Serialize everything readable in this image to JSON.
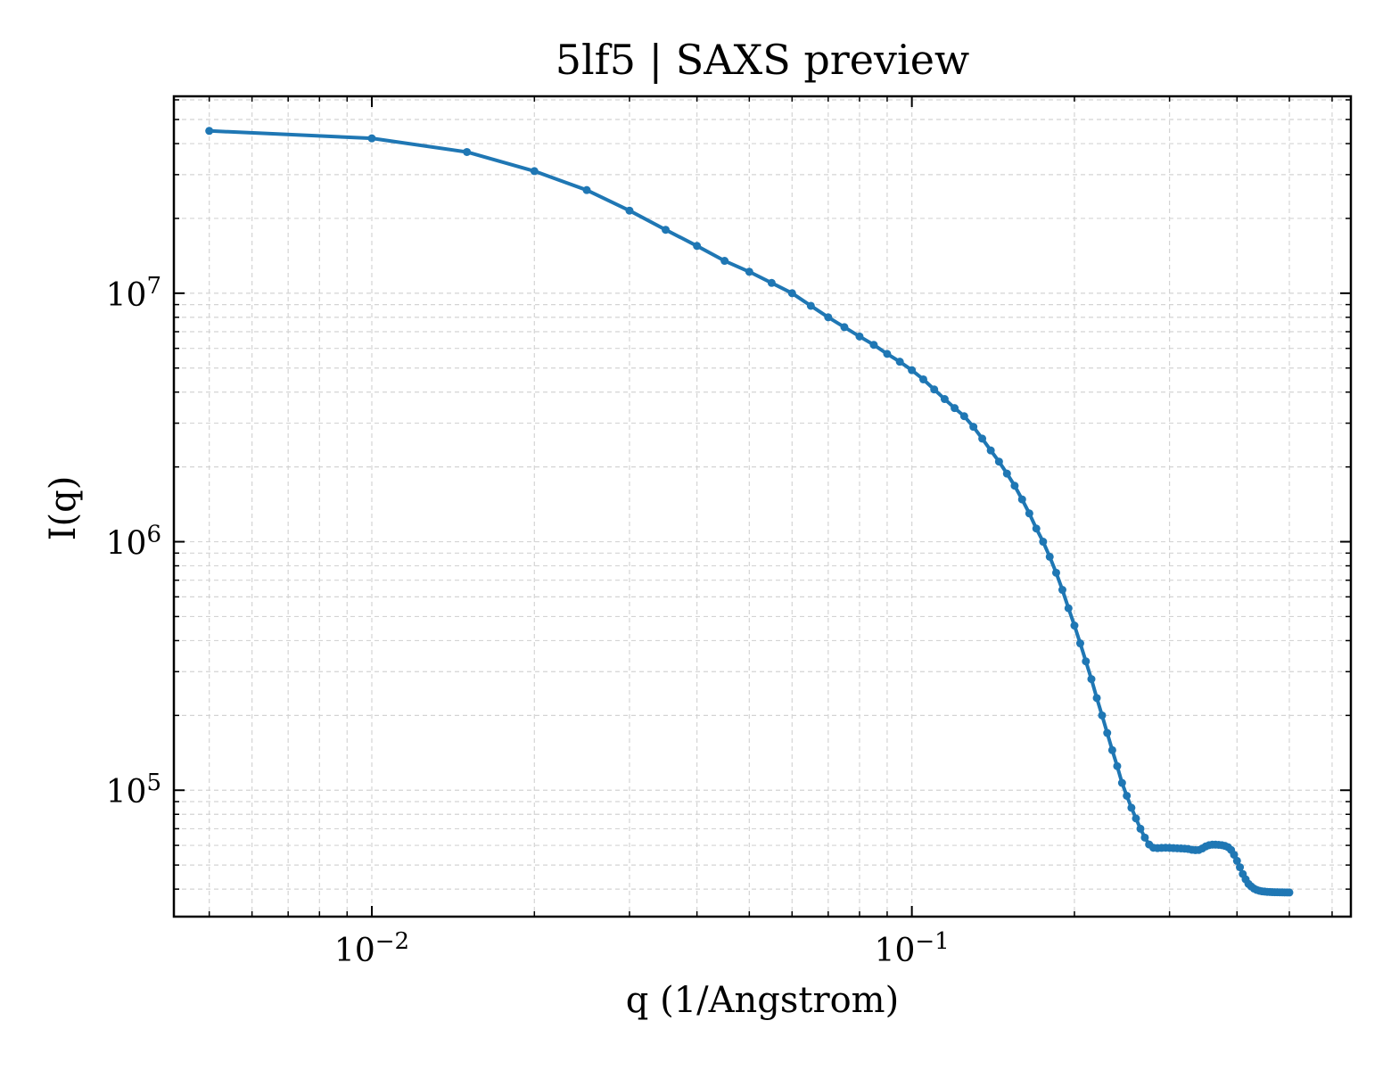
{
  "chart_data": {
    "type": "line",
    "title": "5lf5 | SAXS preview",
    "xlabel": "q (1/Angstrom)",
    "ylabel": "I(q)",
    "xscale": "log",
    "yscale": "log",
    "xlim": [
      0.0043,
      0.65
    ],
    "ylim": [
      31000,
      62000000
    ],
    "grid": true,
    "x_ticks": [
      {
        "value": 0.01,
        "base": "10",
        "exp": "−2"
      },
      {
        "value": 0.1,
        "base": "10",
        "exp": "−1"
      }
    ],
    "y_ticks": [
      {
        "value": 100000,
        "base": "10",
        "exp": "5"
      },
      {
        "value": 1000000,
        "base": "10",
        "exp": "6"
      },
      {
        "value": 10000000,
        "base": "10",
        "exp": "7"
      }
    ],
    "series": [
      {
        "color": "#1f77b4",
        "marker": "point",
        "x": [
          0.005,
          0.01,
          0.015,
          0.02,
          0.025,
          0.03,
          0.035,
          0.04,
          0.045,
          0.05,
          0.055,
          0.06,
          0.065,
          0.07,
          0.075,
          0.08,
          0.085,
          0.09,
          0.095,
          0.1,
          0.105,
          0.11,
          0.115,
          0.12,
          0.125,
          0.13,
          0.135,
          0.14,
          0.145,
          0.15,
          0.155,
          0.16,
          0.165,
          0.17,
          0.175,
          0.18,
          0.185,
          0.19,
          0.195,
          0.2,
          0.205,
          0.21,
          0.215,
          0.22,
          0.225,
          0.23,
          0.235,
          0.24,
          0.245,
          0.25,
          0.255,
          0.26,
          0.265,
          0.27,
          0.275,
          0.28,
          0.285,
          0.29,
          0.295,
          0.3,
          0.305,
          0.31,
          0.315,
          0.32,
          0.325,
          0.33,
          0.335,
          0.34,
          0.345,
          0.35,
          0.355,
          0.36,
          0.365,
          0.37,
          0.375,
          0.38,
          0.385,
          0.39,
          0.395,
          0.4,
          0.405,
          0.41,
          0.415,
          0.42,
          0.425,
          0.43,
          0.435,
          0.44,
          0.445,
          0.45,
          0.455,
          0.46,
          0.465,
          0.47,
          0.475,
          0.48,
          0.485,
          0.49,
          0.495,
          0.5
        ],
        "y": [
          45000000,
          42000000,
          37000000,
          31000000,
          26000000,
          21500000,
          18000000,
          15500000,
          13500000,
          12200000,
          11000000,
          10000000,
          8900000,
          8000000,
          7300000,
          6700000,
          6200000,
          5700000,
          5300000,
          4900000,
          4500000,
          4100000,
          3750000,
          3450000,
          3200000,
          2900000,
          2600000,
          2330000,
          2100000,
          1880000,
          1680000,
          1480000,
          1300000,
          1130000,
          1000000,
          870000,
          750000,
          640000,
          540000,
          460000,
          390000,
          330000,
          280000,
          235000,
          200000,
          170000,
          145000,
          125000,
          107000,
          95000,
          85000,
          77000,
          70000,
          64500,
          60500,
          58700,
          58500,
          58600,
          58700,
          58600,
          58500,
          58400,
          58300,
          58200,
          58000,
          57600,
          57400,
          57500,
          58300,
          59400,
          60100,
          60400,
          60400,
          60300,
          60100,
          59700,
          59000,
          57500,
          55000,
          52000,
          49000,
          46000,
          43800,
          42000,
          41000,
          40200,
          39700,
          39400,
          39200,
          39100,
          39000,
          38950,
          38900,
          38870,
          38850,
          38830,
          38810,
          38800,
          38790,
          38780
        ]
      }
    ]
  }
}
